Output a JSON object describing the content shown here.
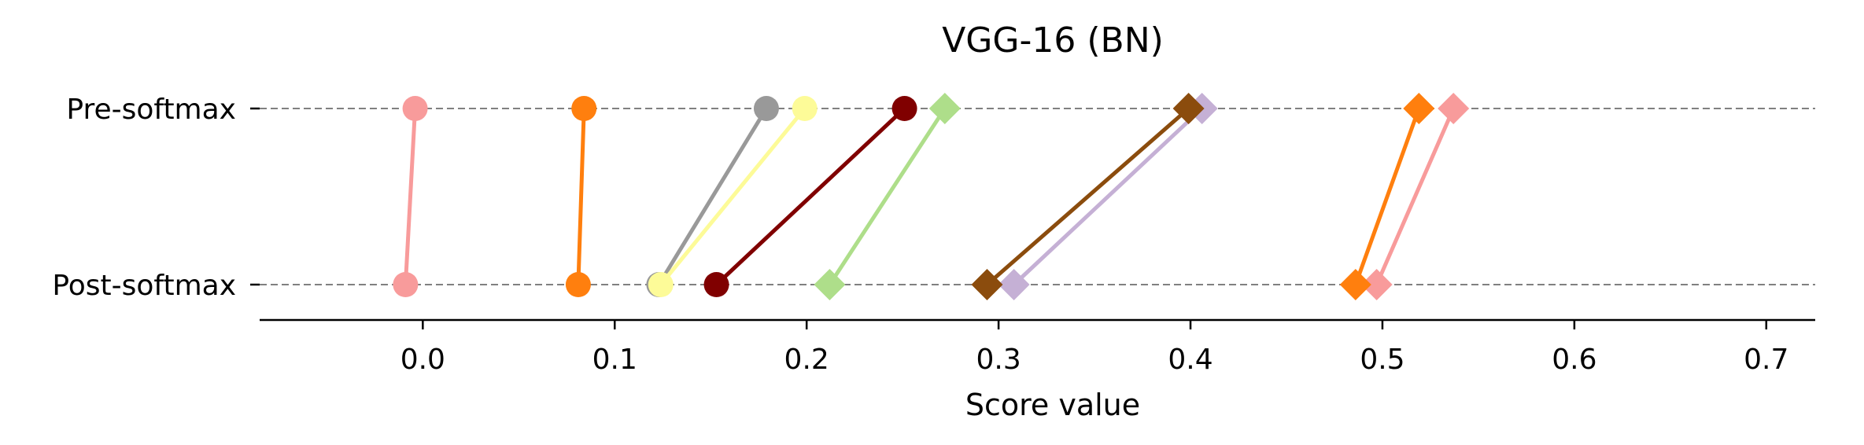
{
  "chart_data": {
    "type": "scatter",
    "title": "VGG-16 (BN)",
    "xlabel": "Score value",
    "ylabel": "",
    "xlim": [
      -0.085,
      0.7255
    ],
    "xticks": [
      0.0,
      0.1,
      0.2,
      0.3,
      0.4,
      0.5,
      0.6,
      0.7
    ],
    "xtick_labels": [
      "0.0",
      "0.1",
      "0.2",
      "0.3",
      "0.4",
      "0.5",
      "0.6",
      "0.7"
    ],
    "categories": [
      "Pre-softmax",
      "Post-softmax"
    ],
    "gridlines": "horizontal dashed at each category",
    "series": [
      {
        "color": "#f89b9b",
        "marker": "circle",
        "values": [
          -0.004,
          -0.009
        ]
      },
      {
        "color": "#ff7f0e",
        "marker": "circle",
        "values": [
          0.084,
          0.081
        ]
      },
      {
        "color": "#999999",
        "marker": "circle",
        "values": [
          0.179,
          0.123
        ]
      },
      {
        "color": "#fdfb98",
        "marker": "circle",
        "values": [
          0.199,
          0.124
        ]
      },
      {
        "color": "#800000",
        "marker": "circle",
        "values": [
          0.251,
          0.153
        ]
      },
      {
        "color": "#aede8a",
        "marker": "diamond",
        "values": [
          0.272,
          0.212
        ]
      },
      {
        "color": "#c5b0d5",
        "marker": "diamond",
        "values": [
          0.406,
          0.308
        ]
      },
      {
        "color": "#8b4c0d",
        "marker": "diamond",
        "values": [
          0.399,
          0.294
        ]
      },
      {
        "color": "#f89b9b",
        "marker": "diamond",
        "values": [
          0.537,
          0.497
        ]
      },
      {
        "color": "#ff7f0e",
        "marker": "diamond",
        "values": [
          0.519,
          0.486
        ]
      }
    ]
  }
}
